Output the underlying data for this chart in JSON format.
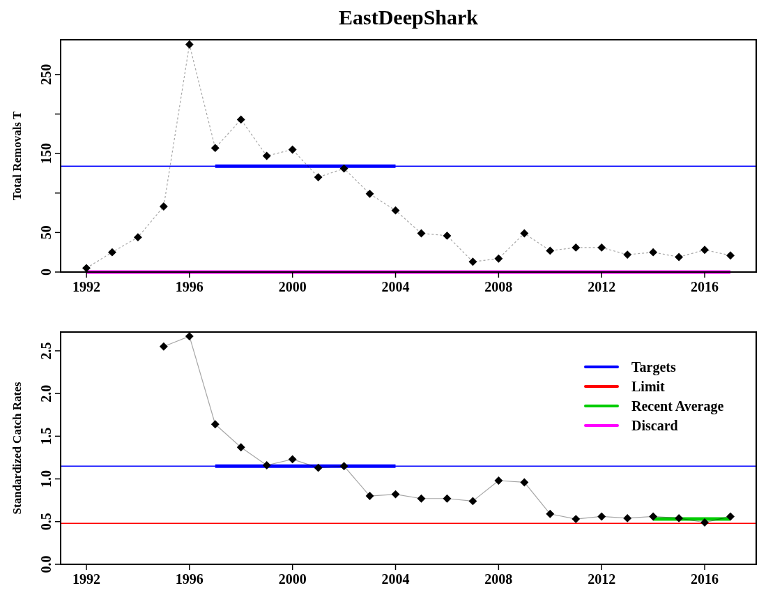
{
  "chart_data": [
    {
      "type": "line",
      "title": "EastDeepShark",
      "ylabel": "Total Removals T",
      "xlim": [
        1991,
        2018
      ],
      "xticks": [
        1992,
        1996,
        2000,
        2004,
        2008,
        2012,
        2016
      ],
      "ylim": [
        0,
        294
      ],
      "yticks": [
        0,
        50,
        {
          "value": 100,
          "label": null
        },
        150,
        {
          "value": 200,
          "label": null
        },
        250
      ],
      "grid": false,
      "legend": false,
      "series": [
        {
          "color": "#ff00ff",
          "marker": "none",
          "line_style": "solid",
          "x": [
            1992,
            2017
          ],
          "values": [
            0,
            0
          ]
        },
        {
          "color": "#0000ff",
          "marker": "none",
          "line_style": "solid",
          "x": [
            1997,
            2004
          ],
          "values": [
            134,
            134
          ]
        },
        {
          "color": "#000000",
          "marker": "diamond",
          "line_style": "dashed",
          "x": [
            1992,
            1993,
            1994,
            1995,
            1996,
            1997,
            1998,
            1999,
            2000,
            2001,
            2002,
            2003,
            2004,
            2005,
            2006,
            2007,
            2008,
            2009,
            2010,
            2011,
            2012,
            2013,
            2014,
            2015,
            2016,
            2017
          ],
          "values": [
            5,
            25,
            44,
            83,
            288,
            157,
            193,
            147,
            155,
            120,
            131,
            99,
            78,
            49,
            46,
            13,
            17,
            49,
            27,
            31,
            31,
            22,
            25,
            19,
            28,
            21
          ]
        }
      ],
      "ref_lines": [
        {
          "axis": "y",
          "value": 134,
          "color": "#0000ff"
        }
      ]
    },
    {
      "type": "line",
      "ylabel": "Standardized Catch Rates",
      "xlim": [
        1991,
        2018
      ],
      "xticks": [
        1992,
        1996,
        2000,
        2004,
        2008,
        2012,
        2016
      ],
      "ylim": [
        0,
        2.72
      ],
      "yticks": [
        {
          "value": 0,
          "label": "0.0"
        },
        {
          "value": 0.5,
          "label": "0.5"
        },
        {
          "value": 1,
          "label": "1.0"
        },
        {
          "value": 1.5,
          "label": "1.5"
        },
        {
          "value": 2,
          "label": "2.0"
        },
        {
          "value": 2.5,
          "label": "2.5"
        }
      ],
      "grid": false,
      "legend": "top right",
      "series": [
        {
          "color": "#000000",
          "marker": "diamond",
          "line_style": "solid",
          "x": [
            1995,
            1996,
            1997,
            1998,
            1999,
            2000,
            2001,
            2002,
            2003,
            2004,
            2005,
            2006,
            2007,
            2008,
            2009,
            2010,
            2011,
            2012,
            2013,
            2014,
            2015,
            2016,
            2017
          ],
          "values": [
            2.55,
            2.67,
            1.64,
            1.37,
            1.16,
            1.23,
            1.13,
            1.15,
            0.8,
            0.82,
            0.77,
            0.77,
            0.74,
            0.98,
            0.96,
            0.59,
            0.53,
            0.56,
            0.54,
            0.56,
            0.54,
            0.49,
            0.56
          ]
        },
        {
          "color": "#0000ff",
          "marker": "none",
          "line_style": "solid",
          "x": [
            1997,
            2004
          ],
          "values": [
            1.15,
            1.15
          ]
        },
        {
          "name": "Recent Average",
          "color": "#00cc00",
          "marker": "none",
          "line_style": "solid",
          "x": [
            2014,
            2017
          ],
          "values": [
            0.53,
            0.53
          ]
        },
        {
          "name": "Discard",
          "color": "#ff00ff"
        }
      ],
      "ref_lines": [
        {
          "axis": "y",
          "value": 1.15,
          "label": "Targets",
          "color": "#0000ff"
        },
        {
          "axis": "y",
          "value": 0.48,
          "label": "Limit",
          "color": "#ff0000"
        }
      ]
    }
  ]
}
